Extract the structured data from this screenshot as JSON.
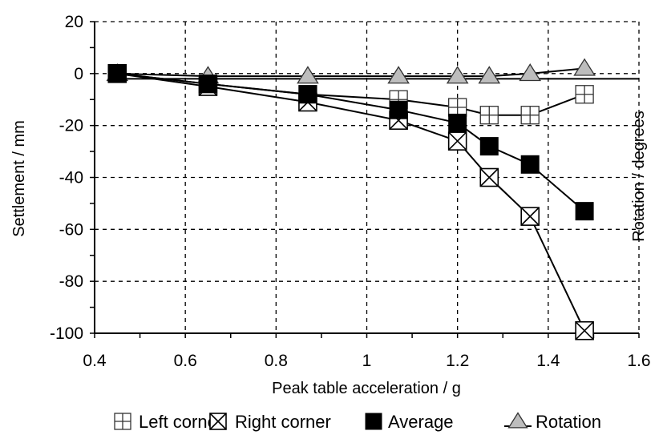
{
  "chart_data": {
    "type": "line",
    "title": "",
    "xlabel": "Peak table acceleration / g",
    "ylabel": "Settlement / mm",
    "y2label": "Rotation / degrees",
    "xlim": [
      0.4,
      1.6
    ],
    "ylim": [
      -100,
      20
    ],
    "x_ticks": [
      "0.4",
      "0.6",
      "0.8",
      "1",
      "1.2",
      "1.4",
      "1.6"
    ],
    "y_ticks": [
      "20",
      "0",
      "-20",
      "-40",
      "-60",
      "-80",
      "-100"
    ],
    "grid": true,
    "legend_position": "bottom",
    "series": [
      {
        "name": "Left corner",
        "marker": "square-plus",
        "color": "#000000",
        "points": [
          [
            0.45,
            0
          ],
          [
            0.65,
            -4
          ],
          [
            0.87,
            -8
          ],
          [
            1.07,
            -10
          ],
          [
            1.2,
            -13
          ],
          [
            1.27,
            -16
          ],
          [
            1.36,
            -16
          ],
          [
            1.48,
            -8
          ]
        ]
      },
      {
        "name": "Right corner",
        "marker": "square-x",
        "color": "#000000",
        "points": [
          [
            0.45,
            0
          ],
          [
            0.65,
            -5
          ],
          [
            0.87,
            -11
          ],
          [
            1.07,
            -18
          ],
          [
            1.2,
            -26
          ],
          [
            1.27,
            -40
          ],
          [
            1.36,
            -55
          ],
          [
            1.48,
            -99
          ]
        ]
      },
      {
        "name": "Average",
        "marker": "filled-square",
        "color": "#000000",
        "points": [
          [
            0.45,
            0
          ],
          [
            0.65,
            -4
          ],
          [
            0.87,
            -8
          ],
          [
            1.07,
            -14
          ],
          [
            1.2,
            -19
          ],
          [
            1.27,
            -28
          ],
          [
            1.36,
            -35
          ],
          [
            1.48,
            -53
          ]
        ]
      },
      {
        "name": "Rotation",
        "marker": "triangle",
        "color": "#000000",
        "points": [
          [
            0.45,
            0
          ],
          [
            0.65,
            -1
          ],
          [
            0.87,
            -1
          ],
          [
            1.07,
            -1
          ],
          [
            1.2,
            -1
          ],
          [
            1.27,
            -1
          ],
          [
            1.36,
            0
          ],
          [
            1.48,
            2
          ]
        ]
      }
    ],
    "reference_line": {
      "y": -2
    }
  }
}
